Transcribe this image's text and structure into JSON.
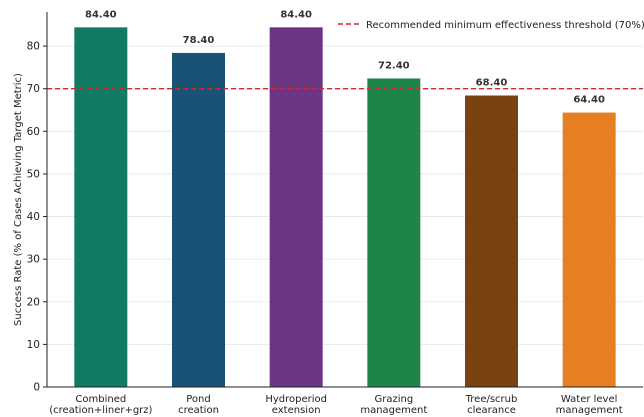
{
  "chart_data": {
    "type": "bar",
    "categories": [
      [
        "Combined",
        "(creation+liner+grz)"
      ],
      [
        "Pond",
        "creation"
      ],
      [
        "Hydroperiod",
        "extension"
      ],
      [
        "Grazing",
        "management"
      ],
      [
        "Tree/scrub",
        "clearance"
      ],
      [
        "Water level",
        "management"
      ]
    ],
    "values": [
      84.4,
      78.4,
      84.4,
      72.4,
      68.4,
      64.4
    ],
    "value_labels": [
      "84.40",
      "78.40",
      "84.40",
      "72.40",
      "68.40",
      "64.40"
    ],
    "colors": [
      "#117a65",
      "#1a5276",
      "#6c3483",
      "#1e8449",
      "#784212",
      "#e67e22"
    ],
    "ylabel": "Success Rate (% of Cases Achieving Target Metric)",
    "xlabel": "",
    "ylim": [
      0,
      88
    ],
    "yticks": [
      0,
      10,
      20,
      30,
      40,
      50,
      60,
      70,
      80
    ],
    "grid": "horizontal",
    "threshold": {
      "value": 70,
      "label": "Recommended minimum effectiveness threshold (70%)",
      "color": "#d62728",
      "style": "dashed"
    },
    "legend_position": "top-right"
  }
}
